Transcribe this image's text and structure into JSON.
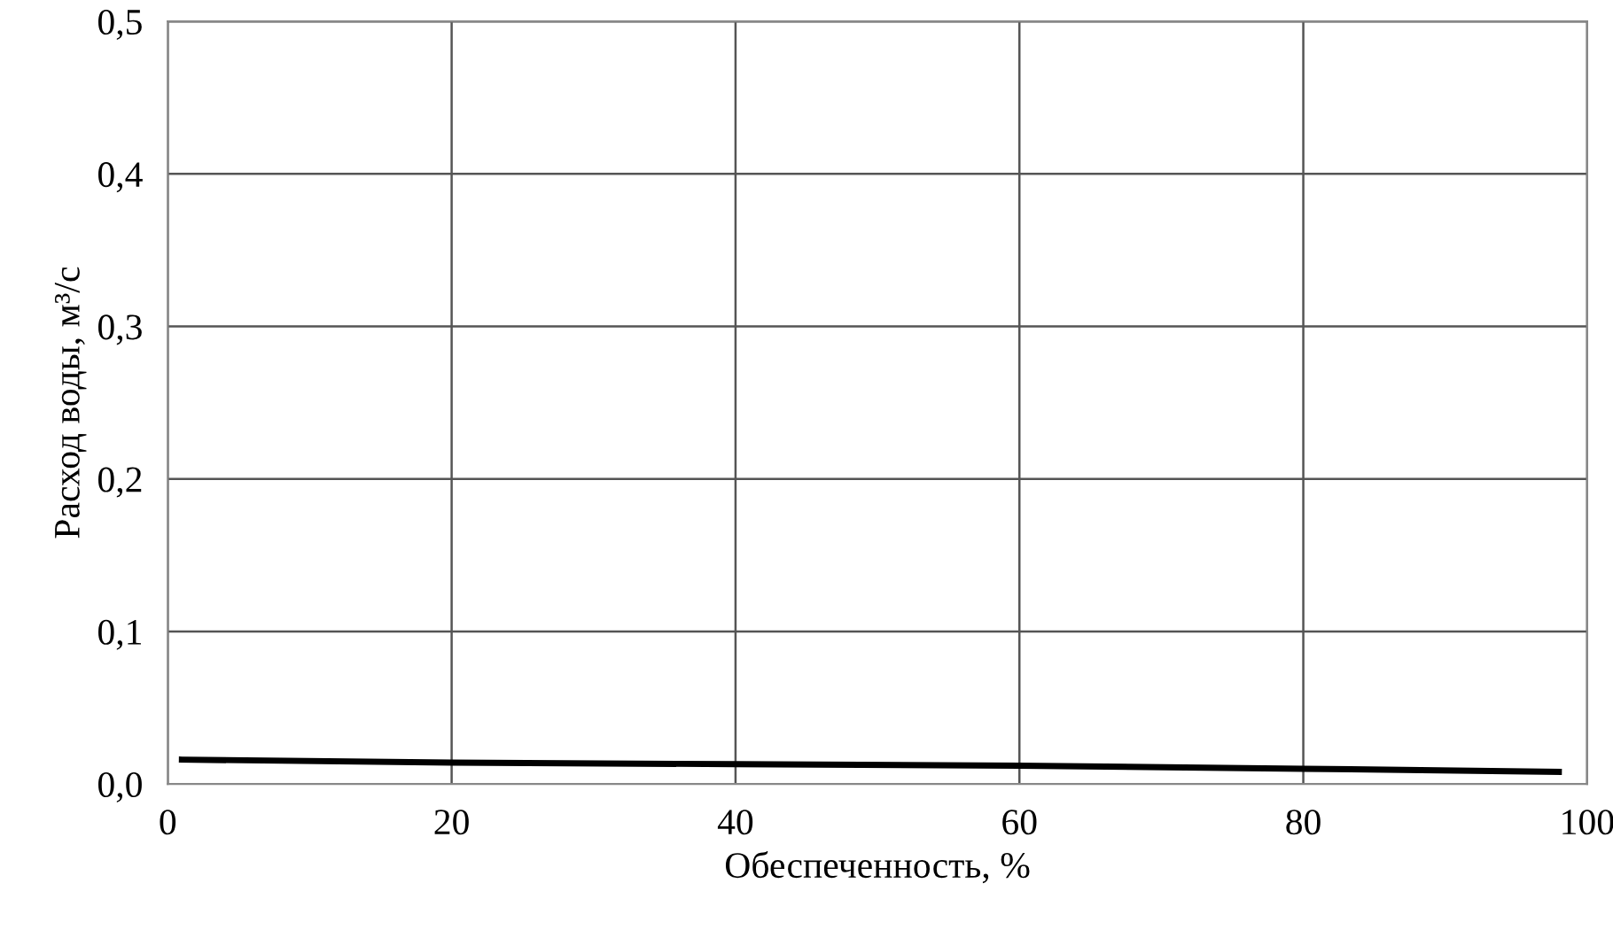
{
  "chart_data": {
    "type": "line",
    "xlabel": "Обеспеченность, %",
    "ylabel": "Расход воды, м³/с",
    "x": [
      1,
      20,
      40,
      60,
      80,
      98
    ],
    "series": [
      {
        "color": "#000000",
        "values": [
          0.016,
          0.014,
          0.013,
          0.012,
          0.01,
          0.008
        ]
      }
    ],
    "xlim": [
      0,
      100
    ],
    "xticks": [
      0,
      20,
      40,
      60,
      80,
      100
    ],
    "ylim": [
      0,
      0.5
    ],
    "yticks": [
      {
        "value": 0,
        "label": "0,0"
      },
      {
        "value": 0.1,
        "label": "0,1"
      },
      {
        "value": 0.2,
        "label": "0,2"
      },
      {
        "value": 0.3,
        "label": "0,3"
      },
      {
        "value": 0.4,
        "label": "0,4"
      },
      {
        "value": 0.5,
        "label": "0,5"
      }
    ],
    "grid": true,
    "legend": false,
    "marker": "none",
    "line_style": "solid"
  }
}
